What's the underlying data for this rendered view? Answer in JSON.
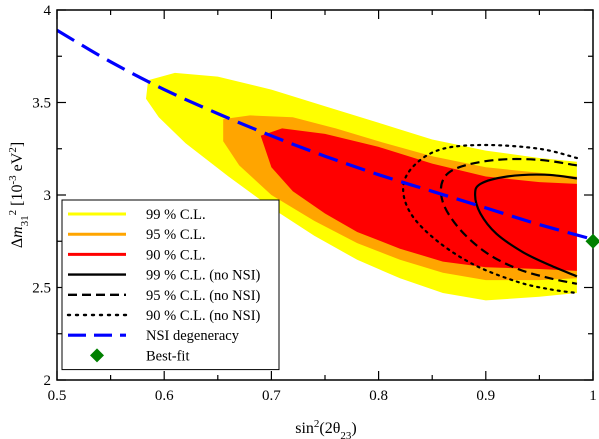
{
  "chart_data": {
    "type": "area",
    "xlabel": {
      "base": "sin",
      "sup": "2",
      "arg": "(2θ",
      "sub": "23",
      "close": ")"
    },
    "ylabel": {
      "delta": "Δ",
      "m": "m",
      "sub": "31",
      "sup": "2",
      "unit_open": " [10",
      "unit_exp": "-3",
      "unit_mid": " eV",
      "unit_exp2": "2",
      "unit_close": "]"
    },
    "xlim": [
      0.5,
      1.0
    ],
    "ylim": [
      2.0,
      4.0
    ],
    "xticks": [
      0.5,
      0.6,
      0.7,
      0.8,
      0.9,
      1.0
    ],
    "xtick_labels": [
      "0.5",
      "0.6",
      "0.7",
      "0.8",
      "0.9",
      "1"
    ],
    "yticks": [
      2.0,
      2.5,
      3.0,
      3.5,
      4.0
    ],
    "ytick_labels": [
      "2",
      "2.5",
      "3",
      "3.5",
      "4"
    ],
    "grid": false,
    "legend_position": "bottom-left",
    "legend": [
      {
        "label": "99 % C.L.",
        "style": "fill",
        "color": "#ffff00"
      },
      {
        "label": "95 % C.L.",
        "style": "fill",
        "color": "#ffa500"
      },
      {
        "label": "90 % C.L.",
        "style": "fill",
        "color": "#ff0000"
      },
      {
        "label": "99 % C.L. (no NSI)",
        "style": "solid",
        "color": "#000000"
      },
      {
        "label": "95 % C.L. (no NSI)",
        "style": "dashed",
        "color": "#000000"
      },
      {
        "label": "90 % C.L. (no NSI)",
        "style": "dotted",
        "color": "#000000"
      },
      {
        "label": "NSI degeneracy",
        "style": "dashed-blue",
        "color": "#0000ff"
      },
      {
        "label": "Best-fit",
        "style": "diamond",
        "color": "#008000"
      }
    ],
    "regions": [
      {
        "name": "99 % C.L.",
        "color": "#ffff00",
        "points": [
          [
            0.585,
            3.62
          ],
          [
            0.61,
            3.66
          ],
          [
            0.65,
            3.64
          ],
          [
            0.7,
            3.57
          ],
          [
            0.75,
            3.48
          ],
          [
            0.8,
            3.39
          ],
          [
            0.85,
            3.3
          ],
          [
            0.9,
            3.24
          ],
          [
            0.95,
            3.2
          ],
          [
            0.985,
            3.18
          ],
          [
            0.985,
            2.47
          ],
          [
            0.95,
            2.45
          ],
          [
            0.9,
            2.43
          ],
          [
            0.86,
            2.47
          ],
          [
            0.82,
            2.55
          ],
          [
            0.78,
            2.65
          ],
          [
            0.74,
            2.78
          ],
          [
            0.7,
            2.93
          ],
          [
            0.66,
            3.1
          ],
          [
            0.62,
            3.28
          ],
          [
            0.595,
            3.42
          ],
          [
            0.583,
            3.52
          ]
        ]
      },
      {
        "name": "95 % C.L.",
        "color": "#ffa500",
        "points": [
          [
            0.655,
            3.41
          ],
          [
            0.68,
            3.43
          ],
          [
            0.72,
            3.42
          ],
          [
            0.76,
            3.36
          ],
          [
            0.8,
            3.29
          ],
          [
            0.85,
            3.21
          ],
          [
            0.9,
            3.15
          ],
          [
            0.95,
            3.12
          ],
          [
            0.985,
            3.1
          ],
          [
            0.985,
            2.55
          ],
          [
            0.95,
            2.54
          ],
          [
            0.9,
            2.54
          ],
          [
            0.86,
            2.58
          ],
          [
            0.82,
            2.65
          ],
          [
            0.78,
            2.74
          ],
          [
            0.74,
            2.86
          ],
          [
            0.7,
            3.0
          ],
          [
            0.67,
            3.16
          ],
          [
            0.655,
            3.29
          ]
        ]
      },
      {
        "name": "90 % C.L.",
        "color": "#ff0000",
        "points": [
          [
            0.69,
            3.32
          ],
          [
            0.71,
            3.36
          ],
          [
            0.75,
            3.33
          ],
          [
            0.8,
            3.26
          ],
          [
            0.85,
            3.17
          ],
          [
            0.9,
            3.1
          ],
          [
            0.95,
            3.07
          ],
          [
            0.985,
            3.06
          ],
          [
            0.985,
            2.59
          ],
          [
            0.95,
            2.6
          ],
          [
            0.9,
            2.61
          ],
          [
            0.86,
            2.64
          ],
          [
            0.82,
            2.71
          ],
          [
            0.78,
            2.8
          ],
          [
            0.75,
            2.9
          ],
          [
            0.72,
            3.02
          ],
          [
            0.7,
            3.15
          ]
        ]
      }
    ],
    "contours": [
      {
        "name": "99 % C.L. (no NSI)",
        "style": "solid",
        "points": [
          [
            0.985,
            3.09
          ],
          [
            0.955,
            3.11
          ],
          [
            0.92,
            3.1
          ],
          [
            0.895,
            3.06
          ],
          [
            0.89,
            3.0
          ],
          [
            0.895,
            2.9
          ],
          [
            0.91,
            2.79
          ],
          [
            0.935,
            2.69
          ],
          [
            0.96,
            2.62
          ],
          [
            0.985,
            2.56
          ]
        ]
      },
      {
        "name": "95 % C.L. (no NSI)",
        "style": "dashed",
        "points": [
          [
            0.985,
            3.16
          ],
          [
            0.95,
            3.19
          ],
          [
            0.91,
            3.19
          ],
          [
            0.875,
            3.15
          ],
          [
            0.86,
            3.08
          ],
          [
            0.86,
            2.96
          ],
          [
            0.875,
            2.82
          ],
          [
            0.9,
            2.69
          ],
          [
            0.93,
            2.6
          ],
          [
            0.96,
            2.55
          ],
          [
            0.985,
            2.52
          ]
        ]
      },
      {
        "name": "90 % C.L. (no NSI)",
        "style": "dotted",
        "points": [
          [
            0.985,
            3.2
          ],
          [
            0.95,
            3.25
          ],
          [
            0.9,
            3.27
          ],
          [
            0.86,
            3.25
          ],
          [
            0.835,
            3.17
          ],
          [
            0.823,
            3.05
          ],
          [
            0.83,
            2.9
          ],
          [
            0.855,
            2.75
          ],
          [
            0.89,
            2.62
          ],
          [
            0.93,
            2.53
          ],
          [
            0.96,
            2.49
          ],
          [
            0.985,
            2.47
          ]
        ]
      }
    ],
    "nsi_degeneracy": {
      "name": "NSI degeneracy",
      "points": [
        [
          0.5,
          3.89
        ],
        [
          0.55,
          3.72
        ],
        [
          0.6,
          3.57
        ],
        [
          0.65,
          3.44
        ],
        [
          0.7,
          3.32
        ],
        [
          0.75,
          3.21
        ],
        [
          0.8,
          3.11
        ],
        [
          0.85,
          3.02
        ],
        [
          0.9,
          2.93
        ],
        [
          0.95,
          2.84
        ],
        [
          1.0,
          2.76
        ]
      ]
    },
    "best_fit": {
      "name": "Best-fit",
      "x": 1.0,
      "y": 2.75
    }
  }
}
